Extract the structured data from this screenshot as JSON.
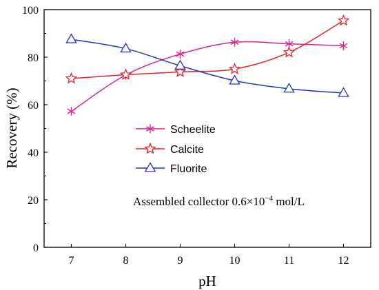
{
  "chart_data": {
    "type": "line",
    "xlabel": "pH",
    "ylabel": "Recovery (%)",
    "xlim": [
      6.5,
      12.5
    ],
    "ylim": [
      0,
      100
    ],
    "x": [
      7,
      8,
      9,
      10,
      11,
      12
    ],
    "x_ticks": [
      "7",
      "8",
      "9",
      "10",
      "11",
      "12"
    ],
    "y_ticks": [
      "0",
      "20",
      "40",
      "60",
      "80",
      "100"
    ],
    "grid": false,
    "legend_position": "center",
    "series": [
      {
        "name": "Scheelite",
        "values": [
          57.2,
          72.5,
          81.3,
          86.3,
          85.6,
          84.8
        ],
        "color": "#e0208f",
        "marker": "asterisk-icon"
      },
      {
        "name": "Calcite",
        "values": [
          71.0,
          72.6,
          73.8,
          75.0,
          82.0,
          95.4
        ],
        "color": "#e8222a",
        "marker": "star-icon"
      },
      {
        "name": "Fluorite",
        "values": [
          87.5,
          83.6,
          76.4,
          70.1,
          66.7,
          64.9
        ],
        "color": "#2430c9",
        "marker": "triangle-icon"
      }
    ],
    "annotation": {
      "label_prefix": "Assembled collector 0.6×10",
      "label_exponent": "−4",
      "label_suffix": " mol/L"
    }
  }
}
